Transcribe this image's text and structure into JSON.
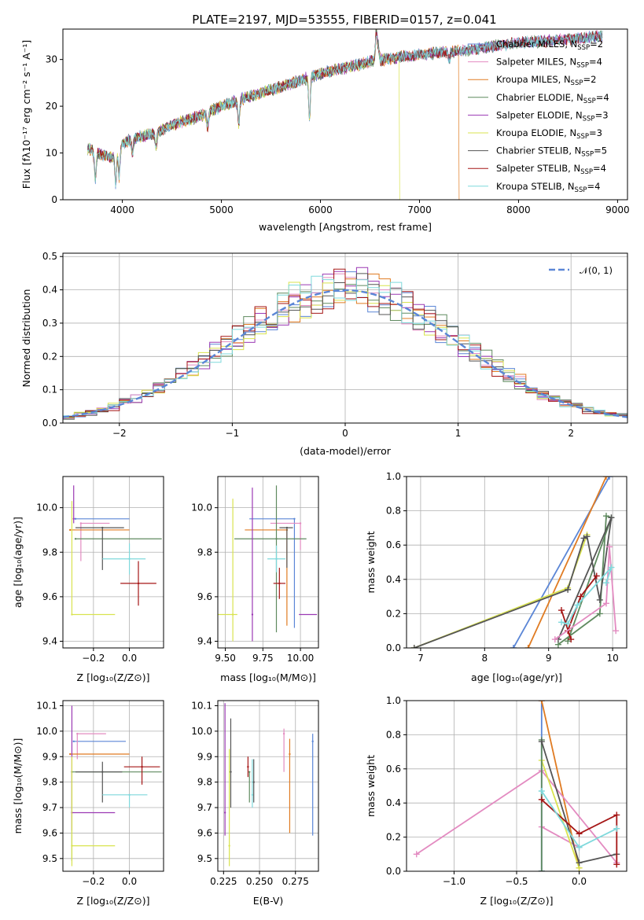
{
  "page_title": "PLATE=2197, MJD=53555, FIBERID=0157, z=0.041",
  "colors": {
    "chabrier_miles": "#5b86d6",
    "salpeter_miles": "#e38bc1",
    "kroupa_miles": "#e07b22",
    "chabrier_elodie": "#5f8a5f",
    "salpeter_elodie": "#9b39b4",
    "kroupa_elodie": "#d9e34f",
    "chabrier_stelib": "#555555",
    "salpeter_stelib": "#a51616",
    "kroupa_stelib": "#7fd9dc",
    "normal": "#5b86d6"
  },
  "chart_data": [
    {
      "id": "spectrum",
      "type": "line",
      "xlabel": "wavelength [Angstrom, rest frame]",
      "ylabel": "Flux [fλ10⁻¹⁷ erg cm⁻² s⁻¹ A⁻¹]",
      "xlim": [
        3400,
        9100
      ],
      "ylim": [
        0,
        36.5
      ],
      "xticks": [
        "4000",
        "5000",
        "6000",
        "7000",
        "8000",
        "9000"
      ],
      "yticks": [
        "0",
        "10",
        "20",
        "30"
      ],
      "legend_position": "top-right",
      "series": [
        {
          "name": "Chabrier MILES, N_SSP=2"
        },
        {
          "name": "Salpeter MILES, N_SSP=4"
        },
        {
          "name": "Kroupa MILES, N_SSP=2"
        },
        {
          "name": "Chabrier ELODIE, N_SSP=4"
        },
        {
          "name": "Salpeter ELODIE, N_SSP=3"
        },
        {
          "name": "Kroupa ELODIE, N_SSP=3"
        },
        {
          "name": "Chabrier STELIB, N_SSP=5"
        },
        {
          "name": "Salpeter STELIB, N_SSP=4"
        },
        {
          "name": "Kroupa STELIB, N_SSP=4"
        }
      ],
      "continuum": {
        "wavelength": [
          3650,
          3800,
          3900,
          4000,
          4100,
          4300,
          4500,
          4800,
          5000,
          5200,
          5500,
          5800,
          6000,
          6200,
          6500,
          6800,
          7000,
          7200,
          7500,
          7800,
          8000,
          8300,
          8600,
          8850
        ],
        "flux": [
          11,
          9.5,
          9,
          12,
          13,
          14,
          16,
          18,
          20,
          21.5,
          23.5,
          25.5,
          27,
          28,
          29.5,
          30.5,
          31,
          31.5,
          32,
          33,
          33.5,
          34,
          34.5,
          35
        ]
      },
      "cutoffs": [
        {
          "model": "Kroupa ELODIE",
          "wavelength": 6800
        },
        {
          "model": "Kroupa MILES",
          "wavelength": 7400
        }
      ]
    },
    {
      "id": "residuals",
      "type": "line",
      "xlabel": "(data-model)/error",
      "ylabel": "Normed distribution",
      "xlim": [
        -2.5,
        2.5
      ],
      "ylim": [
        0,
        0.51
      ],
      "xticks": [
        "−2",
        "−1",
        "0",
        "1",
        "2"
      ],
      "yticks": [
        "0.0",
        "0.1",
        "0.2",
        "0.3",
        "0.4",
        "0.5"
      ],
      "grid": true,
      "legend_position": "top-right",
      "bin_width": 0.1,
      "normal_curve": {
        "name": "𝒩(0, 1)",
        "mean": 0,
        "sigma": 1
      }
    },
    {
      "id": "age-vs-z",
      "type": "scatter",
      "xlabel": "Z [log₁₀(Z/Z⊙)]",
      "ylabel": "age  [log₁₀(age/yr)]",
      "xlim": [
        -0.37,
        0.19
      ],
      "ylim": [
        9.37,
        10.14
      ],
      "xticks": [
        -0.2,
        0.0
      ],
      "xtick_labels": [
        "−0.2",
        "0.0"
      ],
      "yticks": [
        9.4,
        9.6,
        9.8,
        10.0
      ],
      "grid": true,
      "points": [
        {
          "model": "Chabrier MILES",
          "x": -0.3,
          "xerr": [
            0,
            0.3
          ],
          "y": 9.95,
          "yerr": [
            0,
            0
          ]
        },
        {
          "model": "Salpeter MILES",
          "x": -0.27,
          "xerr": [
            0,
            0.16
          ],
          "y": 9.93,
          "yerr": [
            0.17,
            0
          ]
        },
        {
          "model": "Kroupa MILES",
          "x": -0.33,
          "xerr": [
            0,
            0.33
          ],
          "y": 9.9,
          "yerr": [
            0,
            0
          ]
        },
        {
          "model": "Chabrier ELODIE",
          "x": -0.3,
          "xerr": [
            0,
            0.48
          ],
          "y": 9.86,
          "yerr": [
            0,
            0
          ]
        },
        {
          "model": "Salpeter ELODIE",
          "x": -0.31,
          "xerr": [
            0,
            0
          ],
          "y": 9.95,
          "yerr": [
            0.02,
            0.15
          ]
        },
        {
          "model": "Kroupa ELODIE",
          "x": -0.32,
          "xerr": [
            0,
            0.24
          ],
          "y": 9.52,
          "yerr": [
            0,
            0.51
          ]
        },
        {
          "model": "Chabrier STELIB",
          "x": -0.15,
          "xerr": [
            0.15,
            0.12
          ],
          "y": 9.91,
          "yerr": [
            0.19,
            0
          ]
        },
        {
          "model": "Salpeter STELIB",
          "x": 0.05,
          "xerr": [
            0.1,
            0.1
          ],
          "y": 9.66,
          "yerr": [
            0.1,
            0.1
          ]
        },
        {
          "model": "Kroupa STELIB",
          "x": 0.0,
          "xerr": [
            0.15,
            0.09
          ],
          "y": 9.77,
          "yerr": [
            0.07,
            0.07
          ]
        }
      ]
    },
    {
      "id": "age-vs-mass",
      "type": "scatter",
      "xlabel": "mass [log₁₀(M/M⊙)]",
      "xlim": [
        9.45,
        10.12
      ],
      "ylim": [
        9.37,
        10.14
      ],
      "xticks": [
        9.5,
        9.75,
        10.0
      ],
      "xtick_labels": [
        "9.50",
        "9.75",
        "10.00"
      ],
      "yticks": [
        9.4,
        9.6,
        9.8,
        10.0
      ],
      "grid": true,
      "points": [
        {
          "model": "Chabrier MILES",
          "x": 9.96,
          "xerr": [
            0.3,
            0
          ],
          "y": 9.95,
          "yerr": [
            0.49,
            0
          ]
        },
        {
          "model": "Salpeter MILES",
          "x": 10.0,
          "xerr": [
            0.2,
            0
          ],
          "y": 9.93,
          "yerr": [
            0.12,
            0
          ]
        },
        {
          "model": "Kroupa MILES",
          "x": 9.91,
          "xerr": [
            0.28,
            0
          ],
          "y": 9.9,
          "yerr": [
            0.43,
            0
          ]
        },
        {
          "model": "Chabrier ELODIE",
          "x": 9.84,
          "xerr": [
            0.28,
            0.2
          ],
          "y": 9.86,
          "yerr": [
            0.42,
            0.24
          ]
        },
        {
          "model": "Salpeter ELODIE",
          "x": 9.68,
          "xerr": [
            0,
            0
          ],
          "y": 9.52,
          "yerr": [
            0.12,
            0.57
          ]
        },
        {
          "model": "Kroupa ELODIE",
          "x": 9.55,
          "xerr": [
            0.1,
            0.03
          ],
          "y": 9.52,
          "yerr": [
            0.12,
            0.52
          ]
        },
        {
          "model": "Chabrier STELIB",
          "x": 9.91,
          "xerr": [
            0.05,
            0.04
          ],
          "y": 9.91,
          "yerr": [
            0.18,
            0
          ]
        },
        {
          "model": "Salpeter STELIB",
          "x": 9.86,
          "xerr": [
            0.04,
            0.04
          ],
          "y": 9.66,
          "yerr": [
            0.07,
            0.07
          ]
        },
        {
          "model": "Kroupa STELIB",
          "x": 9.84,
          "xerr": [
            0.06,
            0.06
          ],
          "y": 9.77,
          "yerr": [
            0.06,
            0.06
          ]
        }
      ],
      "extra_hbar": {
        "model": "Salpeter ELODIE",
        "x0": 9.99,
        "x1": 10.11,
        "y": 9.52
      }
    },
    {
      "id": "weight-vs-age",
      "type": "line",
      "xlabel": "age  [log₁₀(age/yr)]",
      "ylabel": "mass weight",
      "xlim": [
        6.78,
        10.22
      ],
      "ylim": [
        0,
        1
      ],
      "xticks": [
        7,
        8,
        9,
        10
      ],
      "yticks": [
        0.0,
        0.2,
        0.4,
        0.6,
        0.8,
        1.0
      ],
      "grid": true,
      "series": [
        {
          "model": "Chabrier MILES",
          "x": [
            8.45,
            9.95
          ],
          "y": [
            0,
            1
          ]
        },
        {
          "model": "Kroupa MILES",
          "x": [
            8.68,
            9.9
          ],
          "y": [
            0,
            1
          ]
        },
        {
          "model": "Kroupa ELODIE",
          "x": [
            6.9,
            9.3,
            9.6
          ],
          "y": [
            0,
            0.35,
            0.66
          ]
        },
        {
          "model": "Chabrier ELODIE",
          "x": [
            9.15,
            9.8,
            9.9,
            9.98,
            9.3
          ],
          "y": [
            0.02,
            0.2,
            0.77,
            0.76,
            0.04
          ]
        },
        {
          "model": "Chabrier STELIB",
          "x": [
            6.9,
            9.3,
            9.55,
            9.6,
            9.8,
            9.98,
            9.15
          ],
          "y": [
            0,
            0.34,
            0.64,
            0.65,
            0.28,
            0.76,
            0.05
          ]
        },
        {
          "model": "Salpeter STELIB",
          "x": [
            9.2,
            9.35,
            9.3,
            9.5,
            9.75
          ],
          "y": [
            0.22,
            0.05,
            0.1,
            0.3,
            0.42
          ]
        },
        {
          "model": "Salpeter MILES",
          "x": [
            9.1,
            9.9,
            9.95,
            10.05
          ],
          "y": [
            0.05,
            0.26,
            0.59,
            0.1
          ]
        },
        {
          "model": "Kroupa STELIB",
          "x": [
            9.2,
            9.3,
            9.45,
            9.98,
            9.9
          ],
          "y": [
            0.15,
            0.14,
            0.25,
            0.47,
            0.38
          ]
        }
      ]
    },
    {
      "id": "mass-vs-z",
      "type": "scatter",
      "xlabel": "Z [log₁₀(Z/Z⊙)]",
      "ylabel": "mass [log₁₀(M/M⊙)]",
      "xlim": [
        -0.37,
        0.19
      ],
      "ylim": [
        9.45,
        10.12
      ],
      "xticks": [
        -0.2,
        0.0
      ],
      "xtick_labels": [
        "−0.2",
        "0.0"
      ],
      "yticks": [
        9.5,
        9.6,
        9.7,
        9.8,
        9.9,
        10.0,
        10.1
      ],
      "grid": true,
      "points": [
        {
          "model": "Chabrier MILES",
          "x": -0.31,
          "xerr": [
            0,
            0.29
          ],
          "y": 9.96,
          "yerr": [
            0,
            0
          ]
        },
        {
          "model": "Salpeter MILES",
          "x": -0.29,
          "xerr": [
            0,
            0.16
          ],
          "y": 9.99,
          "yerr": [
            0.1,
            0
          ]
        },
        {
          "model": "Kroupa MILES",
          "x": -0.33,
          "xerr": [
            0,
            0.33
          ],
          "y": 9.91,
          "yerr": [
            0,
            0
          ]
        },
        {
          "model": "Chabrier ELODIE",
          "x": -0.32,
          "xerr": [
            0,
            0.5
          ],
          "y": 9.84,
          "yerr": [
            0.35,
            0
          ]
        },
        {
          "model": "Salpeter ELODIE",
          "x": -0.32,
          "xerr": [
            0,
            0.24
          ],
          "y": 9.68,
          "yerr": [
            0.07,
            0.42
          ]
        },
        {
          "model": "Kroupa ELODIE",
          "x": -0.32,
          "xerr": [
            0,
            0.24
          ],
          "y": 9.55,
          "yerr": [
            0.08,
            0.35
          ]
        },
        {
          "model": "Chabrier STELIB",
          "x": -0.15,
          "xerr": [
            0.15,
            0.11
          ],
          "y": 9.84,
          "yerr": [
            0.12,
            0.04
          ]
        },
        {
          "model": "Salpeter STELIB",
          "x": 0.07,
          "xerr": [
            0.1,
            0.1
          ],
          "y": 9.86,
          "yerr": [
            0.07,
            0.04
          ]
        },
        {
          "model": "Kroupa STELIB",
          "x": 0.0,
          "xerr": [
            0.15,
            0.1
          ],
          "y": 9.75,
          "yerr": [
            0.05,
            0
          ]
        }
      ]
    },
    {
      "id": "mass-vs-ebv",
      "type": "scatter",
      "xlabel": "E(B-V)",
      "xlim": [
        0.221,
        0.291
      ],
      "ylim": [
        9.45,
        10.12
      ],
      "xticks": [
        0.225,
        0.25,
        0.275
      ],
      "xtick_labels": [
        "0.225",
        "0.250",
        "0.275"
      ],
      "yticks": [
        9.5,
        9.6,
        9.7,
        9.8,
        9.9,
        10.0,
        10.1
      ],
      "grid": true,
      "points": [
        {
          "model": "Chabrier MILES",
          "x": 0.287,
          "xerr": [
            0,
            0
          ],
          "y": 9.96,
          "yerr": [
            0.37,
            0.03
          ]
        },
        {
          "model": "Salpeter MILES",
          "x": 0.267,
          "xerr": [
            0,
            0
          ],
          "y": 9.99,
          "yerr": [
            0.15,
            0.02
          ]
        },
        {
          "model": "Kroupa MILES",
          "x": 0.271,
          "xerr": [
            0,
            0
          ],
          "y": 9.91,
          "yerr": [
            0.31,
            0.06
          ]
        },
        {
          "model": "Chabrier ELODIE",
          "x": 0.243,
          "xerr": [
            0,
            0
          ],
          "y": 9.84,
          "yerr": [
            0.12,
            0
          ]
        },
        {
          "model": "Salpeter ELODIE",
          "x": 0.226,
          "xerr": [
            0,
            0
          ],
          "y": 9.68,
          "yerr": [
            0.09,
            0.43
          ]
        },
        {
          "model": "Kroupa ELODIE",
          "x": 0.229,
          "xerr": [
            0,
            0
          ],
          "y": 9.55,
          "yerr": [
            0.08,
            0.38
          ]
        },
        {
          "model": "Chabrier STELIB",
          "x": 0.23,
          "xerr": [
            0,
            0
          ],
          "y": 9.84,
          "yerr": [
            0.14,
            0.21
          ]
        },
        {
          "model": "Salpeter STELIB",
          "x": 0.242,
          "xerr": [
            0,
            0
          ],
          "y": 9.86,
          "yerr": [
            0.04,
            0.04
          ]
        },
        {
          "model": "Kroupa STELIB",
          "x": 0.245,
          "xerr": [
            0,
            0
          ],
          "y": 9.75,
          "yerr": [
            0.05,
            0.14
          ]
        },
        {
          "model": "Chabrier STELIB",
          "x": 0.246,
          "xerr": [
            0,
            0
          ],
          "y": 9.8,
          "yerr": [
            0.08,
            0.09
          ]
        }
      ]
    },
    {
      "id": "weight-vs-z",
      "type": "line",
      "xlabel": "Z [log₁₀(Z/Z⊙)]",
      "ylabel": "mass weight",
      "xlim": [
        -1.38,
        0.38
      ],
      "ylim": [
        0,
        1
      ],
      "xticks": [
        -1.0,
        -0.5,
        0.0
      ],
      "xtick_labels": [
        "−1.0",
        "−0.5",
        "0.0"
      ],
      "yticks": [
        0.0,
        0.2,
        0.4,
        0.6,
        0.8,
        1.0
      ],
      "grid": true,
      "series": [
        {
          "model": "Chabrier MILES",
          "x": [
            -0.3,
            -0.3
          ],
          "y": [
            0,
            1
          ]
        },
        {
          "model": "Kroupa MILES",
          "x": [
            -0.3,
            0.0
          ],
          "y": [
            1,
            0.02
          ]
        },
        {
          "model": "Salpeter MILES",
          "x": [
            -1.3,
            -0.3,
            0.3
          ],
          "y": [
            0.1,
            0.59,
            0.05
          ]
        },
        {
          "model": "Salpeter MILES",
          "x": [
            -0.3,
            0.0
          ],
          "y": [
            0.26,
            0.14
          ]
        },
        {
          "model": "Kroupa ELODIE",
          "x": [
            -0.3,
            0.0
          ],
          "y": [
            0.65,
            0.02
          ]
        },
        {
          "model": "Chabrier ELODIE",
          "x": [
            -0.3,
            -0.3
          ],
          "y": [
            0.77,
            0
          ]
        },
        {
          "model": "Chabrier STELIB",
          "x": [
            -0.3,
            0.0,
            0.3
          ],
          "y": [
            0.76,
            0.05,
            0.1
          ]
        },
        {
          "model": "Salpeter STELIB",
          "x": [
            -0.3,
            0.0,
            0.3,
            0.3
          ],
          "y": [
            0.42,
            0.22,
            0.33,
            0.04
          ]
        },
        {
          "model": "Kroupa STELIB",
          "x": [
            -0.3,
            0.0,
            0.3
          ],
          "y": [
            0.47,
            0.14,
            0.25
          ]
        }
      ]
    }
  ]
}
